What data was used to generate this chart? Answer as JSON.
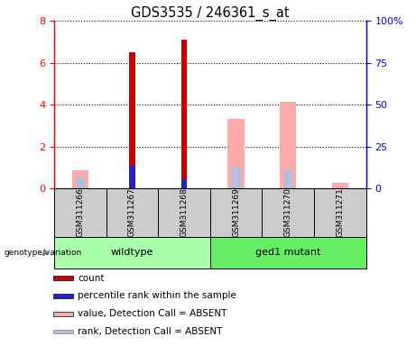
{
  "title": "GDS3535 / 246361_s_at",
  "samples": [
    "GSM311266",
    "GSM311267",
    "GSM311268",
    "GSM311269",
    "GSM311270",
    "GSM311271"
  ],
  "count": [
    0,
    6.5,
    7.1,
    0,
    0,
    0
  ],
  "percentile_rank": [
    0,
    1.1,
    0.45,
    0,
    0,
    0
  ],
  "value_absent": [
    0.85,
    0,
    0,
    3.3,
    4.15,
    0.25
  ],
  "rank_absent": [
    0.55,
    0,
    0,
    1.05,
    0.9,
    0
  ],
  "left_ylim": [
    0,
    8
  ],
  "right_ylim": [
    0,
    100
  ],
  "left_yticks": [
    0,
    2,
    4,
    6,
    8
  ],
  "right_yticks": [
    0,
    25,
    50,
    75,
    100
  ],
  "left_ytick_labels": [
    "0",
    "2",
    "4",
    "6",
    "8"
  ],
  "right_ytick_labels": [
    "0",
    "25",
    "50",
    "75",
    "100%"
  ],
  "color_count": "#cc0000",
  "color_rank": "#2222cc",
  "color_value_absent": "#ffaaaa",
  "color_rank_absent": "#bbbbdd",
  "color_wildtype_bg": "#aaffaa",
  "color_mutant_bg": "#66ee66",
  "color_sample_bg": "#cccccc",
  "legend_labels": [
    "count",
    "percentile rank within the sample",
    "value, Detection Call = ABSENT",
    "rank, Detection Call = ABSENT"
  ],
  "wildtype_label": "wildtype",
  "mutant_label": "ged1 mutant",
  "group_label": "genotype/variation"
}
